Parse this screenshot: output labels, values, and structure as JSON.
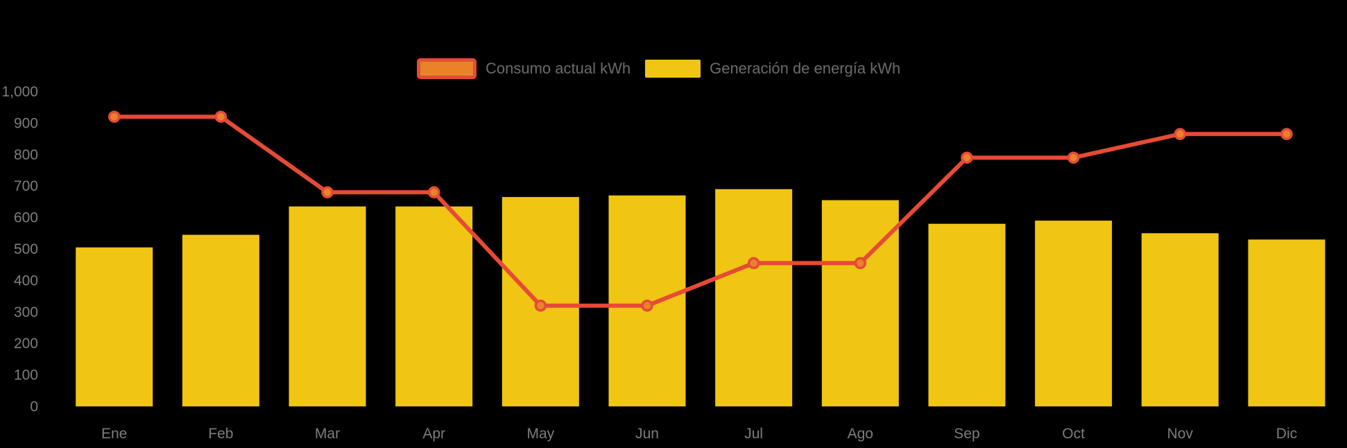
{
  "chart_data": {
    "type": "combo",
    "categories": [
      "Ene",
      "Feb",
      "Mar",
      "Apr",
      "May",
      "Jun",
      "Jul",
      "Ago",
      "Sep",
      "Oct",
      "Nov",
      "Dic"
    ],
    "series": [
      {
        "name": "Consumo actual kWh",
        "type": "line",
        "color": "#E64B35",
        "marker_color": "#E8832A",
        "values": [
          920,
          920,
          680,
          680,
          320,
          320,
          455,
          455,
          790,
          790,
          865,
          865
        ]
      },
      {
        "name": "Generación de energía kWh",
        "type": "bar",
        "color": "#F0C514",
        "values": [
          505,
          545,
          635,
          635,
          665,
          670,
          690,
          655,
          580,
          590,
          550,
          530
        ]
      }
    ],
    "title": "",
    "xlabel": "",
    "ylabel": "",
    "ylim": [
      0,
      1000
    ],
    "y_tick_labels": [
      "0",
      "100",
      "200",
      "300",
      "400",
      "500",
      "600",
      "700",
      "800",
      "900",
      "1,000"
    ],
    "grid": false,
    "legend_position": "top",
    "background_color": "#000000",
    "axis_text_color": "#7D7D7D"
  },
  "legend": {
    "items": [
      {
        "label": "Consumo actual kWh"
      },
      {
        "label": "Generación de energía kWh"
      }
    ]
  }
}
